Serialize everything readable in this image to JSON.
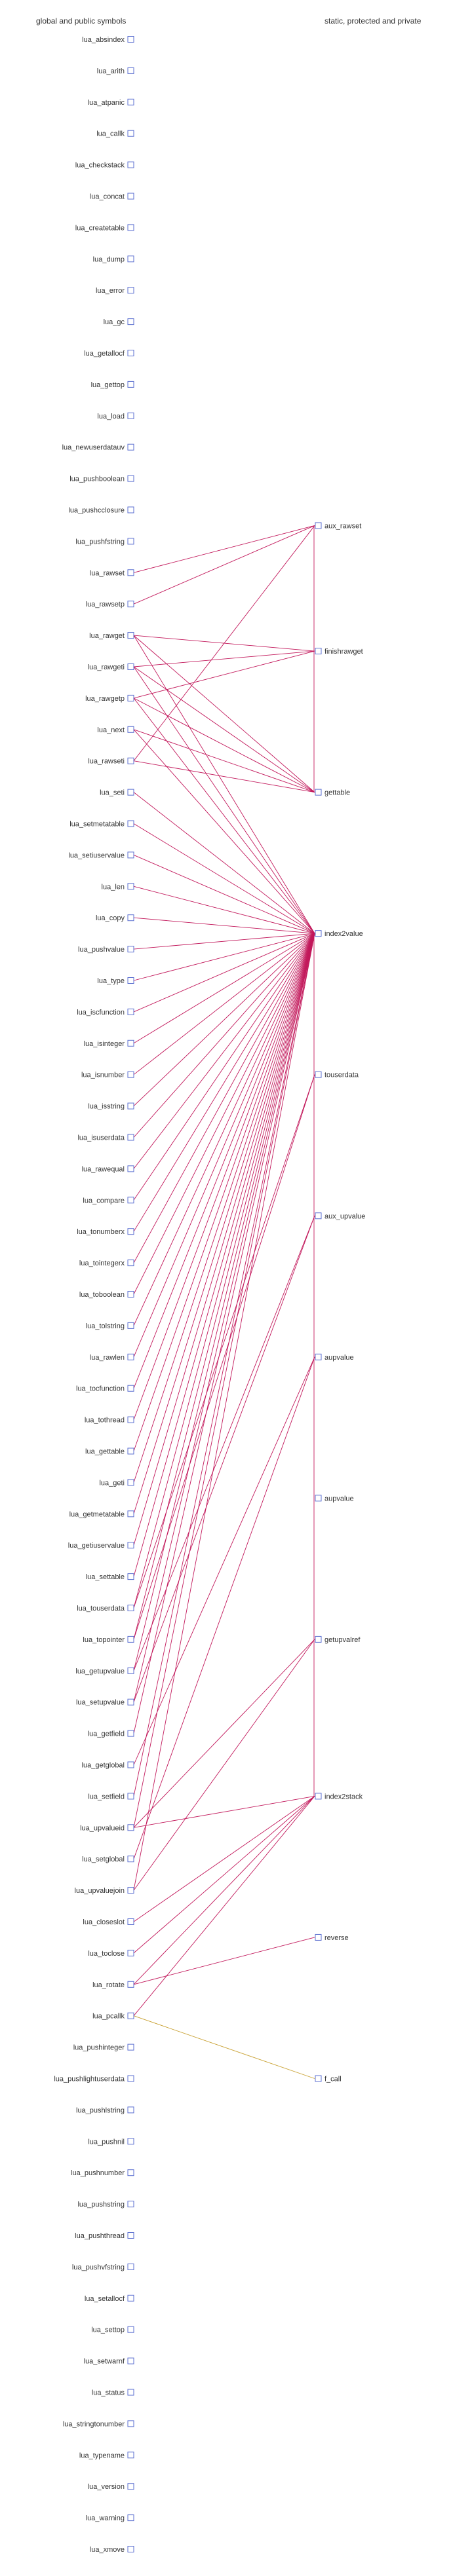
{
  "headers": {
    "left": "global and public symbols",
    "right": "static, protected and private"
  },
  "colors": {
    "edge": "#c2185b",
    "edge_highlight": "#c8a030",
    "node_border": "#5b6fd0",
    "text": "#333333"
  },
  "left_nodes": [
    "lua_absindex",
    "lua_arith",
    "lua_atpanic",
    "lua_callk",
    "lua_checkstack",
    "lua_concat",
    "lua_createtable",
    "lua_dump",
    "lua_error",
    "lua_gc",
    "lua_getallocf",
    "lua_gettop",
    "lua_load",
    "lua_newuserdatauv",
    "lua_pushboolean",
    "lua_pushcclosure",
    "lua_pushfstring",
    "lua_rawset",
    "lua_rawsetp",
    "lua_rawget",
    "lua_rawgeti",
    "lua_rawgetp",
    "lua_next",
    "lua_rawseti",
    "lua_seti",
    "lua_setmetatable",
    "lua_setiuservalue",
    "lua_len",
    "lua_copy",
    "lua_pushvalue",
    "lua_type",
    "lua_iscfunction",
    "lua_isinteger",
    "lua_isnumber",
    "lua_isstring",
    "lua_isuserdata",
    "lua_rawequal",
    "lua_compare",
    "lua_tonumberx",
    "lua_tointegerx",
    "lua_toboolean",
    "lua_tolstring",
    "lua_rawlen",
    "lua_tocfunction",
    "lua_tothread",
    "lua_gettable",
    "lua_geti",
    "lua_getmetatable",
    "lua_getiuservalue",
    "lua_settable",
    "lua_touserdata",
    "lua_topointer",
    "lua_getupvalue",
    "lua_setupvalue",
    "lua_getfield",
    "lua_getglobal",
    "lua_setfield",
    "lua_upvalueid",
    "lua_setglobal",
    "lua_upvaluejoin",
    "lua_closeslot",
    "lua_toclose",
    "lua_rotate",
    "lua_pcallk",
    "lua_pushinteger",
    "lua_pushlightuserdata",
    "lua_pushlstring",
    "lua_pushnil",
    "lua_pushnumber",
    "lua_pushstring",
    "lua_pushthread",
    "lua_pushvfstring",
    "lua_setallocf",
    "lua_settop",
    "lua_setwarnf",
    "lua_status",
    "lua_stringtonumber",
    "lua_typename",
    "lua_version",
    "lua_warning",
    "lua_xmove"
  ],
  "right_nodes": [
    {
      "id": "aux_rawset",
      "row": 15.5
    },
    {
      "id": "finishrawget",
      "row": 19.5
    },
    {
      "id": "gettable",
      "row": 24.0
    },
    {
      "id": "index2value",
      "row": 28.5
    },
    {
      "id": "touserdata",
      "row": 33.0
    },
    {
      "id": "aux_upvalue",
      "row": 37.5
    },
    {
      "id": "aupvalue",
      "row": 42.0
    },
    {
      "id": "aupvalue",
      "row": 46.5
    },
    {
      "id": "getupvalref",
      "row": 51.0
    },
    {
      "id": "index2stack",
      "row": 56.0
    },
    {
      "id": "reverse",
      "row": 60.5
    },
    {
      "id": "f_call",
      "row": 65.0
    }
  ],
  "edges": [
    [
      "lua_rawset",
      "aux_rawset"
    ],
    [
      "lua_rawsetp",
      "aux_rawset"
    ],
    [
      "lua_rawseti",
      "aux_rawset"
    ],
    [
      "lua_rawget",
      "finishrawget"
    ],
    [
      "lua_rawgeti",
      "finishrawget"
    ],
    [
      "lua_rawgetp",
      "finishrawget"
    ],
    [
      "lua_rawget",
      "gettable"
    ],
    [
      "lua_rawgeti",
      "gettable"
    ],
    [
      "lua_rawgetp",
      "gettable"
    ],
    [
      "lua_next",
      "gettable"
    ],
    [
      "lua_rawseti",
      "gettable"
    ],
    [
      "lua_rawget",
      "index2value"
    ],
    [
      "lua_rawgeti",
      "index2value"
    ],
    [
      "lua_rawgetp",
      "index2value"
    ],
    [
      "lua_next",
      "index2value"
    ],
    [
      "lua_seti",
      "index2value"
    ],
    [
      "lua_setmetatable",
      "index2value"
    ],
    [
      "lua_setiuservalue",
      "index2value"
    ],
    [
      "lua_len",
      "index2value"
    ],
    [
      "lua_copy",
      "index2value"
    ],
    [
      "lua_pushvalue",
      "index2value"
    ],
    [
      "lua_type",
      "index2value"
    ],
    [
      "lua_iscfunction",
      "index2value"
    ],
    [
      "lua_isinteger",
      "index2value"
    ],
    [
      "lua_isnumber",
      "index2value"
    ],
    [
      "lua_isstring",
      "index2value"
    ],
    [
      "lua_isuserdata",
      "index2value"
    ],
    [
      "lua_rawequal",
      "index2value"
    ],
    [
      "lua_compare",
      "index2value"
    ],
    [
      "lua_tonumberx",
      "index2value"
    ],
    [
      "lua_tointegerx",
      "index2value"
    ],
    [
      "lua_toboolean",
      "index2value"
    ],
    [
      "lua_tolstring",
      "index2value"
    ],
    [
      "lua_rawlen",
      "index2value"
    ],
    [
      "lua_tocfunction",
      "index2value"
    ],
    [
      "lua_tothread",
      "index2value"
    ],
    [
      "lua_gettable",
      "index2value"
    ],
    [
      "lua_geti",
      "index2value"
    ],
    [
      "lua_getmetatable",
      "index2value"
    ],
    [
      "lua_getiuservalue",
      "index2value"
    ],
    [
      "lua_settable",
      "index2value"
    ],
    [
      "lua_touserdata",
      "index2value"
    ],
    [
      "lua_topointer",
      "index2value"
    ],
    [
      "lua_getupvalue",
      "index2value"
    ],
    [
      "lua_setupvalue",
      "index2value"
    ],
    [
      "lua_getfield",
      "index2value"
    ],
    [
      "lua_setfield",
      "index2value"
    ],
    [
      "lua_upvalueid",
      "index2value"
    ],
    [
      "lua_upvaluejoin",
      "index2value"
    ],
    [
      "lua_touserdata",
      "touserdata"
    ],
    [
      "lua_topointer",
      "touserdata"
    ],
    [
      "lua_getupvalue",
      "aux_upvalue"
    ],
    [
      "lua_setupvalue",
      "aux_upvalue"
    ],
    [
      "lua_getglobal",
      "aupvalue"
    ],
    [
      "lua_setglobal",
      "aupvalue"
    ],
    [
      "lua_upvalueid",
      "getupvalref"
    ],
    [
      "lua_upvaluejoin",
      "getupvalref"
    ],
    [
      "lua_closeslot",
      "index2stack"
    ],
    [
      "lua_toclose",
      "index2stack"
    ],
    [
      "lua_rotate",
      "index2stack"
    ],
    [
      "lua_pcallk",
      "index2stack"
    ],
    [
      "lua_upvalueid",
      "index2stack"
    ],
    [
      "lua_rotate",
      "reverse"
    ],
    [
      "lua_pcallk",
      "f_call"
    ],
    [
      "index2value",
      "index2stack"
    ],
    [
      "aux_rawset",
      "gettable"
    ]
  ],
  "highlight_edges": [
    [
      "lua_pcallk",
      "f_call"
    ]
  ]
}
